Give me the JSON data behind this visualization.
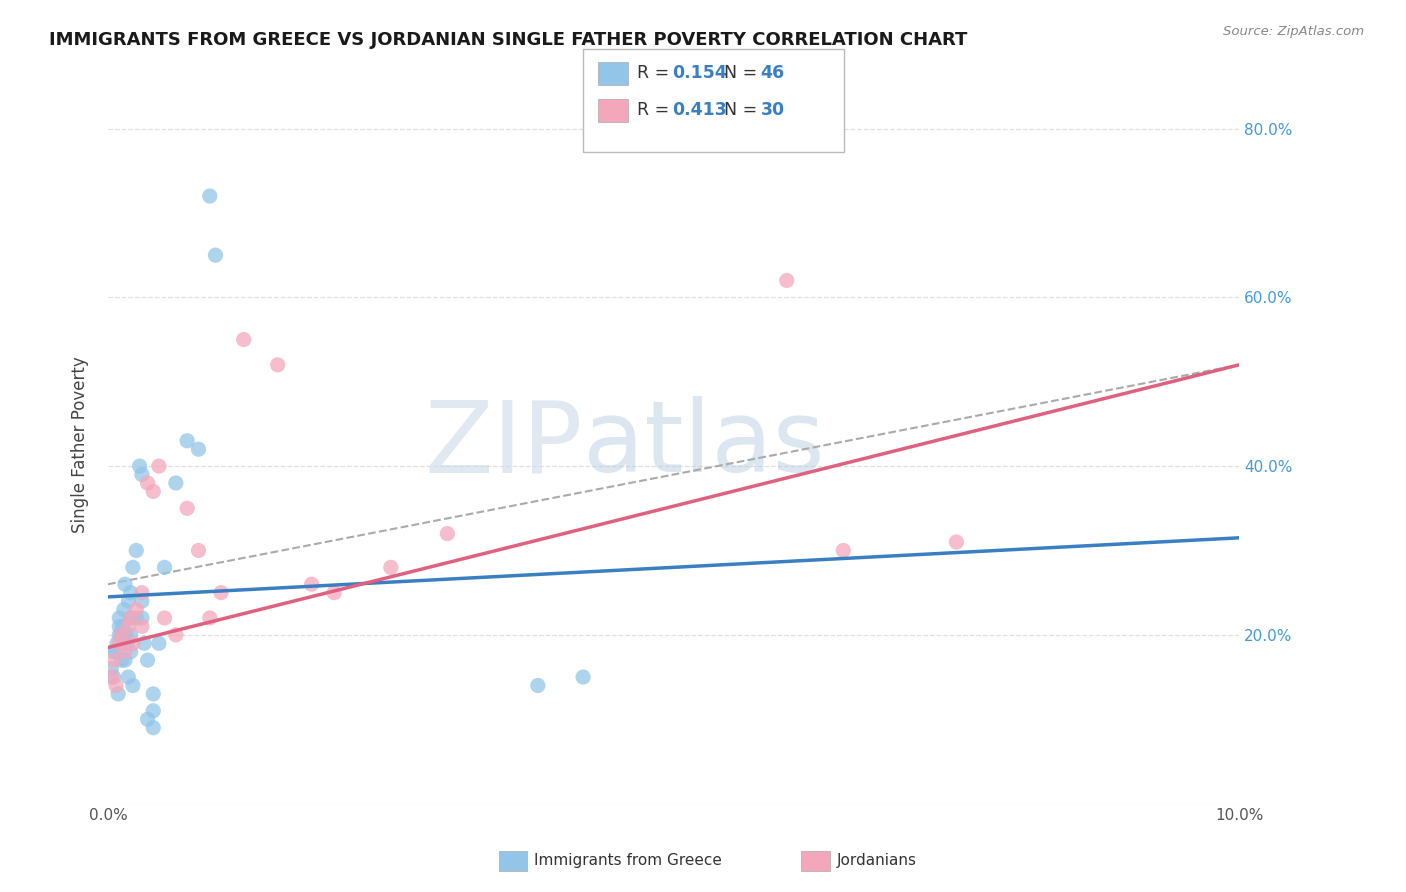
{
  "title": "IMMIGRANTS FROM GREECE VS JORDANIAN SINGLE FATHER POVERTY CORRELATION CHART",
  "source": "Source: ZipAtlas.com",
  "ylabel": "Single Father Poverty",
  "x_min": 0.0,
  "x_max": 0.1,
  "y_min": 0.0,
  "y_max": 0.85,
  "x_tick_positions": [
    0.0,
    0.02,
    0.04,
    0.06,
    0.08,
    0.1
  ],
  "x_tick_labels": [
    "0.0%",
    "",
    "",
    "",
    "",
    "10.0%"
  ],
  "y_tick_positions": [
    0.0,
    0.2,
    0.4,
    0.6,
    0.8
  ],
  "y_tick_labels_right": [
    "",
    "20.0%",
    "40.0%",
    "60.0%",
    "80.0%"
  ],
  "greece_R": 0.154,
  "greece_N": 46,
  "jordan_R": 0.413,
  "jordan_N": 30,
  "blue_color": "#92c5e8",
  "pink_color": "#f4a7bb",
  "blue_line_color": "#3a7fc1",
  "pink_line_color": "#e06080",
  "ci_line_color": "#aaaaaa",
  "watermark_zip_color": "#c5d8ea",
  "watermark_atlas_color": "#b8cfe0",
  "grid_color": "#e0e0e0",
  "right_axis_color": "#4499dd",
  "greece_x": [
    0.0005,
    0.0008,
    0.001,
    0.001,
    0.0012,
    0.0013,
    0.0014,
    0.0015,
    0.0016,
    0.0017,
    0.0018,
    0.002,
    0.002,
    0.002,
    0.0022,
    0.0025,
    0.0028,
    0.003,
    0.003,
    0.0032,
    0.0035,
    0.004,
    0.004,
    0.0045,
    0.005,
    0.006,
    0.007,
    0.008,
    0.009,
    0.0095,
    0.0003,
    0.0005,
    0.0007,
    0.0009,
    0.001,
    0.0012,
    0.0015,
    0.0018,
    0.002,
    0.0022,
    0.0025,
    0.003,
    0.0035,
    0.004,
    0.038,
    0.042
  ],
  "greece_y": [
    0.18,
    0.19,
    0.22,
    0.2,
    0.17,
    0.21,
    0.23,
    0.26,
    0.2,
    0.19,
    0.24,
    0.22,
    0.25,
    0.2,
    0.28,
    0.3,
    0.4,
    0.39,
    0.22,
    0.19,
    0.17,
    0.13,
    0.11,
    0.19,
    0.28,
    0.38,
    0.43,
    0.42,
    0.72,
    0.65,
    0.16,
    0.15,
    0.18,
    0.13,
    0.21,
    0.2,
    0.17,
    0.15,
    0.18,
    0.14,
    0.22,
    0.24,
    0.1,
    0.09,
    0.14,
    0.15
  ],
  "jordan_x": [
    0.0003,
    0.0005,
    0.0007,
    0.001,
    0.0012,
    0.0015,
    0.0018,
    0.002,
    0.0022,
    0.0025,
    0.003,
    0.003,
    0.0035,
    0.004,
    0.0045,
    0.005,
    0.006,
    0.007,
    0.008,
    0.009,
    0.01,
    0.012,
    0.015,
    0.018,
    0.02,
    0.025,
    0.03,
    0.06,
    0.065,
    0.075
  ],
  "jordan_y": [
    0.15,
    0.17,
    0.14,
    0.19,
    0.2,
    0.18,
    0.21,
    0.22,
    0.19,
    0.23,
    0.25,
    0.21,
    0.38,
    0.37,
    0.4,
    0.22,
    0.2,
    0.35,
    0.3,
    0.22,
    0.25,
    0.55,
    0.52,
    0.26,
    0.25,
    0.28,
    0.32,
    0.62,
    0.3,
    0.31
  ],
  "greece_line": {
    "x0": 0.0,
    "x1": 0.1,
    "y0": 0.245,
    "y1": 0.315
  },
  "jordan_line": {
    "x0": 0.0,
    "x1": 0.1,
    "y0": 0.185,
    "y1": 0.52
  },
  "ci_line": {
    "x0": 0.0,
    "x1": 0.1,
    "y0": 0.26,
    "y1": 0.52
  }
}
